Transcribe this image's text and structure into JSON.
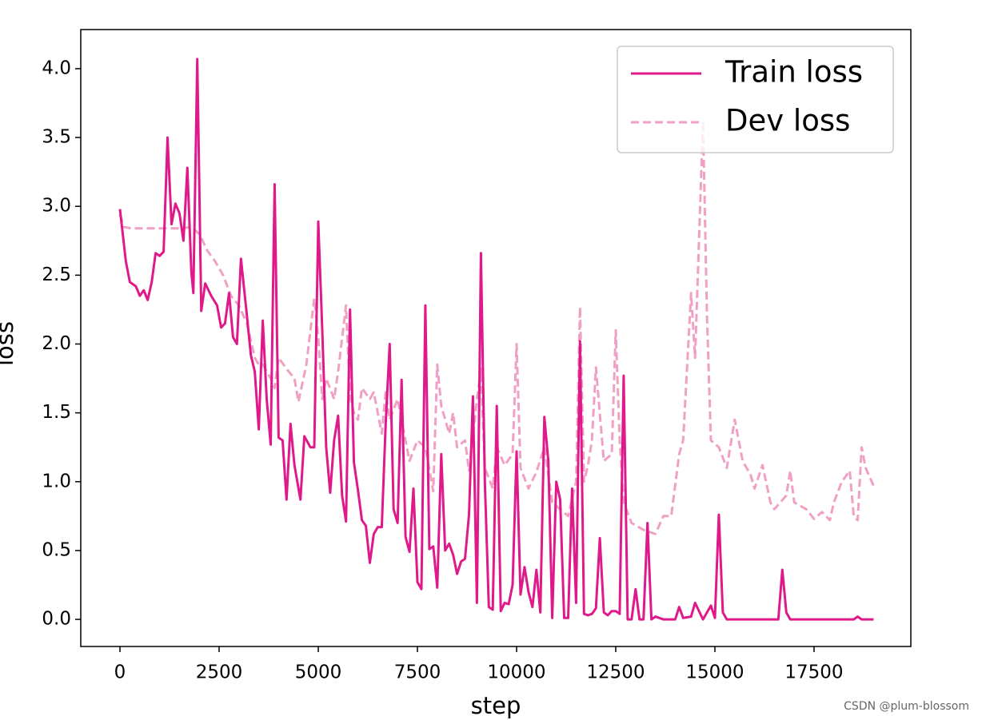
{
  "chart_data": {
    "type": "line",
    "xlabel": "step",
    "ylabel": "loss",
    "xlim": [
      -988,
      19940
    ],
    "ylim": [
      -0.197,
      4.284
    ],
    "xticks": [
      0,
      2500,
      5000,
      7500,
      10000,
      12500,
      15000,
      17500
    ],
    "yticks": [
      {
        "value": 0,
        "label": "0.0"
      },
      0.5,
      {
        "value": 1,
        "label": "1.0"
      },
      1.5,
      {
        "value": 2,
        "label": "2.0"
      },
      2.5,
      {
        "value": 3,
        "label": "3.0"
      },
      3.5,
      {
        "value": 4,
        "label": "4.0"
      }
    ],
    "legend": "upper right",
    "grid": false,
    "series": [
      {
        "name": "Train loss",
        "color": "#e0198a",
        "style": "solid",
        "x": [
          0,
          150,
          250,
          400,
          500,
          600,
          700,
          800,
          900,
          1000,
          1100,
          1200,
          1300,
          1400,
          1500,
          1600,
          1700,
          1800,
          1850,
          1950,
          2050,
          2150,
          2300,
          2450,
          2550,
          2650,
          2750,
          2850,
          2950,
          3050,
          3200,
          3300,
          3400,
          3500,
          3600,
          3700,
          3800,
          3900,
          4000,
          4100,
          4200,
          4300,
          4400,
          4550,
          4650,
          4800,
          4900,
          5000,
          5100,
          5200,
          5300,
          5400,
          5500,
          5600,
          5700,
          5800,
          5900,
          6000,
          6100,
          6200,
          6300,
          6400,
          6500,
          6600,
          6700,
          6800,
          6900,
          7000,
          7100,
          7200,
          7300,
          7400,
          7500,
          7600,
          7700,
          7800,
          7900,
          8000,
          8100,
          8200,
          8300,
          8400,
          8500,
          8600,
          8700,
          8800,
          8900,
          9000,
          9100,
          9200,
          9300,
          9400,
          9500,
          9600,
          9700,
          9800,
          9900,
          10000,
          10100,
          10200,
          10300,
          10400,
          10500,
          10600,
          10700,
          10800,
          10900,
          11000,
          11100,
          11200,
          11300,
          11400,
          11500,
          11600,
          11700,
          11800,
          11900,
          12000,
          12100,
          12200,
          12300,
          12400,
          12500,
          12600,
          12700,
          12800,
          12900,
          13000,
          13100,
          13200,
          13300,
          13400,
          13500,
          13700,
          14000,
          14100,
          14200,
          14400,
          14500,
          14700,
          14900,
          15000,
          15100,
          15200,
          15300,
          16600,
          16700,
          16800,
          16900,
          18500,
          18600,
          18700,
          19000
        ],
        "values": [
          2.98,
          2.6,
          2.45,
          2.42,
          2.35,
          2.39,
          2.32,
          2.45,
          2.66,
          2.64,
          2.67,
          3.5,
          2.87,
          3.02,
          2.95,
          2.75,
          3.28,
          2.52,
          2.37,
          4.07,
          2.24,
          2.44,
          2.35,
          2.28,
          2.12,
          2.15,
          2.37,
          2.05,
          2.0,
          2.62,
          2.21,
          1.92,
          1.8,
          1.38,
          2.17,
          1.6,
          1.27,
          3.16,
          1.32,
          1.3,
          0.87,
          1.42,
          1.12,
          0.87,
          1.33,
          1.25,
          1.25,
          2.89,
          2.1,
          1.25,
          0.92,
          1.3,
          1.48,
          0.9,
          0.71,
          2.25,
          1.14,
          0.94,
          0.72,
          0.68,
          0.41,
          0.62,
          0.67,
          0.67,
          1.42,
          2.0,
          0.8,
          0.7,
          1.74,
          0.6,
          0.49,
          0.95,
          0.27,
          0.22,
          2.28,
          0.51,
          0.53,
          0.23,
          1.2,
          0.5,
          0.55,
          0.47,
          0.33,
          0.42,
          0.44,
          0.76,
          1.62,
          0.12,
          2.66,
          1.0,
          0.09,
          0.07,
          1.55,
          0.06,
          0.12,
          0.11,
          0.25,
          1.22,
          0.18,
          0.38,
          0.2,
          0.09,
          0.36,
          0.05,
          1.47,
          1.15,
          0.01,
          1.0,
          0.87,
          0.01,
          0.01,
          0.95,
          0.12,
          2.02,
          0.04,
          0.03,
          0.04,
          0.08,
          0.59,
          0.05,
          0.03,
          0.06,
          0.06,
          0.04,
          1.77,
          0.0,
          0.0,
          0.22,
          0.0,
          0.0,
          0.7,
          0.0,
          0.02,
          0.0,
          0.0,
          0.09,
          0.01,
          0.02,
          0.12,
          0.0,
          0.1,
          0.01,
          0.76,
          0.05,
          0.0,
          0.0,
          0.36,
          0.05,
          0.0,
          0.0,
          0.02,
          0.0,
          0.0
        ]
      },
      {
        "name": "Dev loss",
        "color": "#f0a0c4",
        "style": "dashed",
        "x": [
          0,
          100,
          300,
          900,
          1200,
          1500,
          1800,
          2000,
          2200,
          2400,
          2600,
          2800,
          3000,
          3200,
          3400,
          3500,
          3600,
          3800,
          3900,
          4000,
          4200,
          4400,
          4500,
          4700,
          4900,
          5000,
          5100,
          5200,
          5400,
          5500,
          5700,
          5800,
          5900,
          6000,
          6100,
          6300,
          6400,
          6600,
          6700,
          6800,
          7000,
          7200,
          7300,
          7500,
          7700,
          7900,
          8000,
          8100,
          8300,
          8400,
          8500,
          8700,
          8800,
          9000,
          9100,
          9200,
          9400,
          9500,
          9700,
          9900,
          10000,
          10100,
          10300,
          10500,
          10700,
          10900,
          11100,
          11300,
          11500,
          11600,
          11700,
          11800,
          11900,
          12000,
          12200,
          12400,
          12500,
          12600,
          12700,
          12900,
          13200,
          13500,
          13700,
          13900,
          14100,
          14200,
          14400,
          14500,
          14700,
          14800,
          14900,
          15100,
          15300,
          15500,
          15700,
          15900,
          16000,
          16200,
          16400,
          16500,
          16800,
          16900,
          17000,
          17300,
          17500,
          17700,
          17900,
          18000,
          18200,
          18400,
          18500,
          18600,
          18700,
          18800,
          19000
        ],
        "values": [
          2.94,
          2.85,
          2.84,
          2.84,
          2.84,
          2.84,
          2.85,
          2.8,
          2.68,
          2.6,
          2.5,
          2.35,
          2.28,
          2.15,
          1.9,
          1.85,
          1.85,
          1.75,
          1.68,
          1.9,
          1.82,
          1.75,
          1.58,
          1.85,
          2.33,
          2.05,
          1.6,
          1.75,
          1.6,
          1.8,
          2.28,
          1.62,
          1.5,
          1.45,
          1.68,
          1.6,
          1.65,
          1.35,
          1.65,
          1.45,
          1.6,
          1.3,
          1.15,
          1.3,
          1.25,
          0.93,
          1.85,
          1.55,
          1.35,
          1.5,
          1.25,
          1.3,
          1.08,
          1.6,
          1.82,
          1.1,
          0.95,
          1.25,
          1.12,
          1.2,
          2.0,
          1.1,
          0.95,
          1.07,
          1.25,
          0.85,
          0.8,
          0.75,
          1.0,
          2.27,
          1.0,
          1.12,
          1.3,
          1.83,
          1.15,
          1.2,
          2.1,
          1.3,
          0.85,
          0.7,
          0.65,
          0.62,
          0.75,
          0.75,
          1.2,
          1.3,
          2.37,
          1.9,
          3.62,
          2.2,
          1.3,
          1.25,
          1.1,
          1.45,
          1.15,
          1.05,
          0.95,
          1.12,
          0.85,
          0.8,
          0.9,
          1.08,
          0.85,
          0.8,
          0.73,
          0.78,
          0.72,
          0.85,
          1.0,
          1.08,
          0.75,
          0.72,
          1.25,
          1.1,
          0.97
        ]
      }
    ]
  },
  "watermark": "CSDN @plum-blossom"
}
